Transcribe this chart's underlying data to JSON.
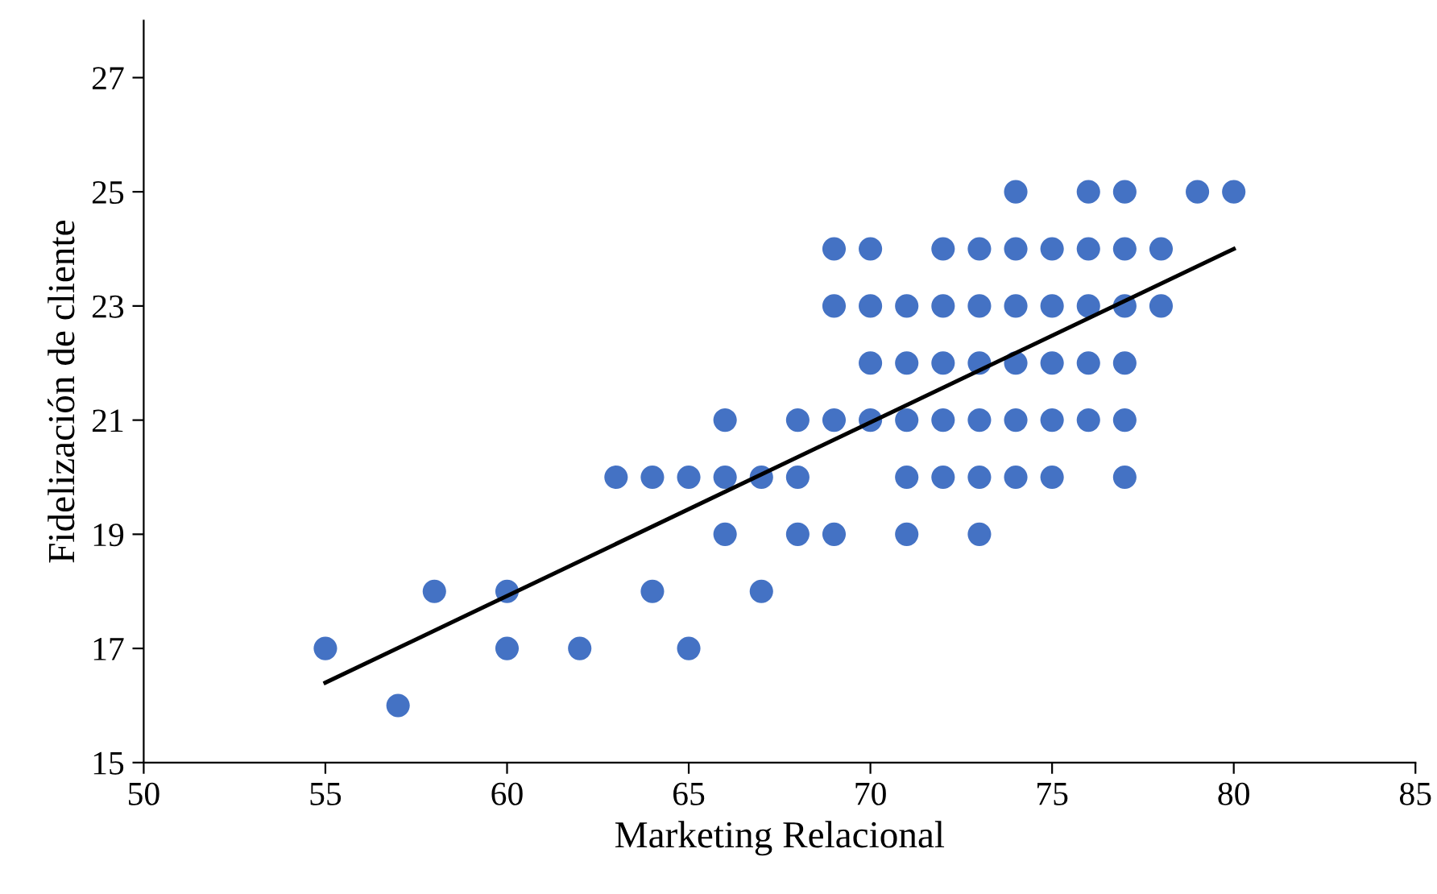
{
  "chart_data": {
    "type": "scatter",
    "xlabel": "Marketing Relacional",
    "ylabel": "Fidelización de cliente",
    "xlim": [
      50,
      85
    ],
    "ylim": [
      15,
      28
    ],
    "xticks": [
      50,
      55,
      60,
      65,
      70,
      75,
      80,
      85
    ],
    "yticks": [
      15,
      17,
      19,
      21,
      23,
      25,
      27
    ],
    "grid": false,
    "legend": false,
    "marker": "circle",
    "series": [
      {
        "color": "#4472c4",
        "x": [
          74,
          76,
          77,
          79,
          80,
          69,
          70,
          72,
          73,
          74,
          75,
          76,
          77,
          78,
          69,
          70,
          71,
          72,
          73,
          74,
          75,
          76,
          77,
          78,
          70,
          71,
          72,
          73,
          74,
          75,
          76,
          77,
          66,
          68,
          69,
          70,
          71,
          72,
          73,
          74,
          75,
          76,
          77,
          63,
          64,
          65,
          66,
          67,
          68,
          71,
          72,
          73,
          74,
          75,
          77,
          66,
          68,
          69,
          71,
          73,
          58,
          60,
          64,
          67,
          55,
          60,
          62,
          65,
          57
        ],
        "values": [
          25,
          25,
          25,
          25,
          25,
          24,
          24,
          24,
          24,
          24,
          24,
          24,
          24,
          24,
          23,
          23,
          23,
          23,
          23,
          23,
          23,
          23,
          23,
          23,
          22,
          22,
          22,
          22,
          22,
          22,
          22,
          22,
          21,
          21,
          21,
          21,
          21,
          21,
          21,
          21,
          21,
          21,
          21,
          20,
          20,
          20,
          20,
          20,
          20,
          20,
          20,
          20,
          20,
          20,
          20,
          19,
          19,
          19,
          19,
          19,
          18,
          18,
          18,
          18,
          17,
          17,
          17,
          17,
          16
        ]
      },
      {
        "type": "line",
        "color": "#000000",
        "line_style": "solid",
        "marker": "none",
        "x": [
          55,
          80
        ],
        "values": [
          16.4,
          24.0
        ]
      }
    ]
  }
}
